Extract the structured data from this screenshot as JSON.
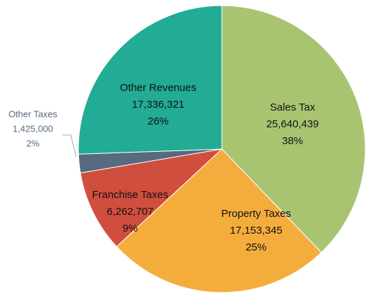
{
  "chart_data": {
    "type": "pie",
    "categories": [
      "Sales Tax",
      "Property Taxes",
      "Franchise Taxes",
      "Other Taxes",
      "Other Revenues"
    ],
    "values": [
      25640439,
      17153345,
      6262707,
      1425000,
      17336321
    ],
    "value_labels": [
      "25,640,439",
      "17,153,345",
      "6,262,707",
      "1,425,000",
      "17,336,321"
    ],
    "percents": [
      38,
      25,
      9,
      2,
      26
    ],
    "percent_labels": [
      "38%",
      "25%",
      "9%",
      "2%",
      "26%"
    ],
    "colors": [
      "#a9c471",
      "#f4ad3d",
      "#d04e3e",
      "#566a80",
      "#22ab95"
    ]
  }
}
